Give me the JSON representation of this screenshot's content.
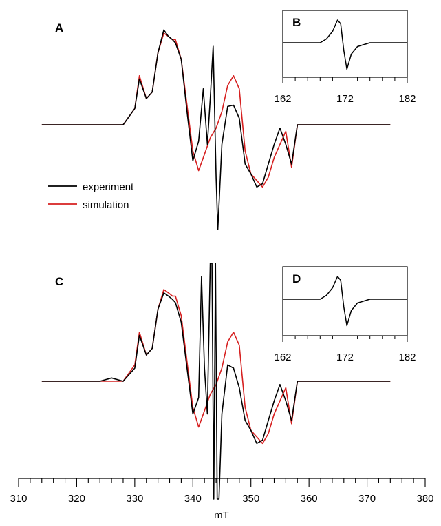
{
  "chart_data": {
    "type": "line",
    "title": "",
    "xlabel": "mT",
    "x_axis": {
      "range": [
        310,
        380
      ],
      "major_ticks": [
        310,
        320,
        330,
        340,
        350,
        360,
        370,
        380
      ],
      "minor_step": 2
    },
    "legend": {
      "placement": "left",
      "entries": [
        {
          "label": "experiment",
          "color": "#000000"
        },
        {
          "label": "simulation",
          "color": "#d62020"
        }
      ]
    },
    "panels": [
      {
        "label": "A",
        "type": "line",
        "x_range": [
          314,
          374
        ],
        "series": [
          {
            "name": "experiment",
            "color": "#000000",
            "x": [
              314,
              328,
              330,
              330.8,
              332,
              333,
              334,
              335,
              335.8,
              336.5,
              337,
              338,
              339,
              340,
              341,
              341.8,
              342.5,
              343,
              343.5,
              344,
              344.3,
              345,
              346,
              347,
              348,
              349,
              350,
              351,
              352,
              353,
              354,
              355,
              356,
              357,
              358,
              374
            ],
            "y": [
              0,
              0,
              0.25,
              0.7,
              0.4,
              0.5,
              1.1,
              1.45,
              1.35,
              1.3,
              1.25,
              1.0,
              0.2,
              -0.55,
              -0.25,
              0.55,
              -0.3,
              0.4,
              1.2,
              -0.8,
              -1.6,
              -0.3,
              0.28,
              0.3,
              0.1,
              -0.6,
              -0.75,
              -0.95,
              -0.9,
              -0.6,
              -0.3,
              -0.05,
              -0.3,
              -0.6,
              0,
              0
            ]
          },
          {
            "name": "simulation",
            "color": "#d62020",
            "x": [
              314,
              328,
              330,
              330.8,
              332,
              333,
              334,
              335,
              335.8,
              336.5,
              337,
              338,
              339,
              340,
              341,
              342,
              343,
              344,
              345,
              346,
              347,
              348,
              349,
              350,
              351,
              352,
              353,
              354,
              355,
              356,
              357,
              358,
              374
            ],
            "y": [
              0,
              0,
              0.25,
              0.75,
              0.4,
              0.5,
              1.1,
              1.4,
              1.35,
              1.3,
              1.3,
              1.0,
              0.3,
              -0.4,
              -0.7,
              -0.45,
              -0.2,
              -0.05,
              0.2,
              0.6,
              0.75,
              0.55,
              -0.4,
              -0.75,
              -0.85,
              -0.95,
              -0.8,
              -0.5,
              -0.3,
              -0.1,
              -0.65,
              0,
              0
            ]
          }
        ],
        "inset": {
          "label": "B",
          "x_range": [
            162,
            182
          ],
          "x_ticks": [
            162,
            172,
            182
          ],
          "series": [
            {
              "name": "experiment",
              "color": "#000000",
              "x": [
                162,
                168,
                169,
                170,
                170.8,
                171.3,
                171.8,
                172.3,
                173,
                174,
                176,
                182
              ],
              "y": [
                0,
                0,
                0.1,
                0.3,
                0.6,
                0.5,
                -0.2,
                -0.7,
                -0.3,
                -0.1,
                0,
                0
              ]
            }
          ]
        }
      },
      {
        "label": "C",
        "type": "line",
        "x_range": [
          314,
          374
        ],
        "series": [
          {
            "name": "experiment",
            "color": "#000000",
            "x": [
              314,
              324,
              326,
              328,
              330,
              330.8,
              332,
              333,
              334,
              335,
              335.8,
              336.5,
              337,
              338,
              339,
              340,
              341,
              341.5,
              342,
              342.5,
              343,
              343.3,
              343.6,
              343.9,
              344.2,
              344.5,
              345,
              346,
              347,
              348,
              349,
              350,
              351,
              352,
              353,
              354,
              355,
              356,
              357,
              358,
              374
            ],
            "y": [
              0,
              0,
              0.05,
              0,
              0.2,
              0.7,
              0.4,
              0.5,
              1.1,
              1.35,
              1.3,
              1.25,
              1.2,
              0.9,
              0.2,
              -0.5,
              -0.25,
              1.6,
              0.2,
              -0.5,
              1.8,
              1.8,
              -1.8,
              1.8,
              -1.8,
              -1.8,
              -0.5,
              0.25,
              0.2,
              -0.1,
              -0.6,
              -0.75,
              -0.95,
              -0.9,
              -0.6,
              -0.3,
              -0.05,
              -0.3,
              -0.6,
              0,
              0
            ]
          },
          {
            "name": "simulation",
            "color": "#d62020",
            "x": [
              314,
              328,
              330,
              330.8,
              332,
              333,
              334,
              335,
              335.8,
              336.5,
              337,
              338,
              339,
              340,
              341,
              342,
              343,
              344,
              345,
              346,
              347,
              348,
              349,
              350,
              351,
              352,
              353,
              354,
              355,
              356,
              357,
              358,
              374
            ],
            "y": [
              0,
              0,
              0.25,
              0.75,
              0.4,
              0.5,
              1.1,
              1.4,
              1.35,
              1.3,
              1.3,
              1.0,
              0.3,
              -0.4,
              -0.7,
              -0.45,
              -0.2,
              -0.05,
              0.2,
              0.6,
              0.75,
              0.55,
              -0.4,
              -0.75,
              -0.85,
              -0.95,
              -0.8,
              -0.5,
              -0.3,
              -0.1,
              -0.65,
              0,
              0
            ]
          }
        ],
        "inset": {
          "label": "D",
          "x_range": [
            162,
            182
          ],
          "x_ticks": [
            162,
            172,
            182
          ],
          "series": [
            {
              "name": "experiment",
              "color": "#000000",
              "x": [
                162,
                168,
                169,
                170,
                170.8,
                171.3,
                171.8,
                172.3,
                173,
                174,
                176,
                182
              ],
              "y": [
                0,
                0,
                0.1,
                0.3,
                0.6,
                0.5,
                -0.2,
                -0.7,
                -0.3,
                -0.1,
                0,
                0
              ]
            }
          ]
        }
      }
    ]
  }
}
